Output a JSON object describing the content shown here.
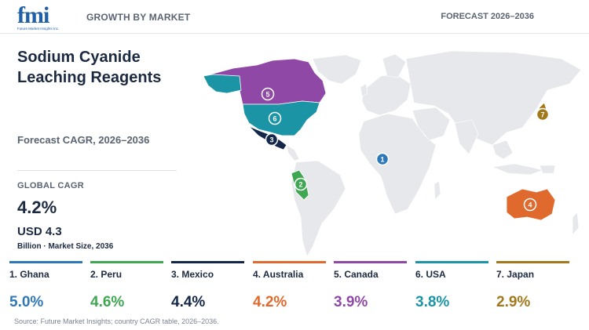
{
  "brand": {
    "name": "fmi",
    "tagline": "Future Market Insights Inc."
  },
  "header": {
    "left_label": "GROWTH BY MARKET",
    "right_label": "FORECAST 2026–2036"
  },
  "title": "Sodium Cyanide Leaching Reagents",
  "forecast_label": "Forecast CAGR, 2026–2036",
  "global": {
    "cagr_label": "GLOBAL CAGR",
    "cagr_value": "4.2%",
    "market_value": "USD 4.3",
    "market_unit": "Billion · Market Size, 2036"
  },
  "countries": [
    {
      "rank": "1",
      "label": "1. Ghana",
      "cagr": "5.0%",
      "color": "#2f78b7"
    },
    {
      "rank": "2",
      "label": "2. Peru",
      "cagr": "4.6%",
      "color": "#3fa652"
    },
    {
      "rank": "3",
      "label": "3. Mexico",
      "cagr": "4.4%",
      "color": "#14274a"
    },
    {
      "rank": "4",
      "label": "4. Australia",
      "cagr": "4.2%",
      "color": "#e06a2e"
    },
    {
      "rank": "5",
      "label": "5. Canada",
      "cagr": "3.9%",
      "color": "#9048a6"
    },
    {
      "rank": "6",
      "label": "6. USA",
      "cagr": "3.8%",
      "color": "#1b95a5"
    },
    {
      "rank": "7",
      "label": "7. Japan",
      "cagr": "2.9%",
      "color": "#a3781a"
    }
  ],
  "map": {
    "base_land_color": "#e6e8eb"
  },
  "source": "Source: Future Market Insights; country CAGR table, 2026–2036."
}
